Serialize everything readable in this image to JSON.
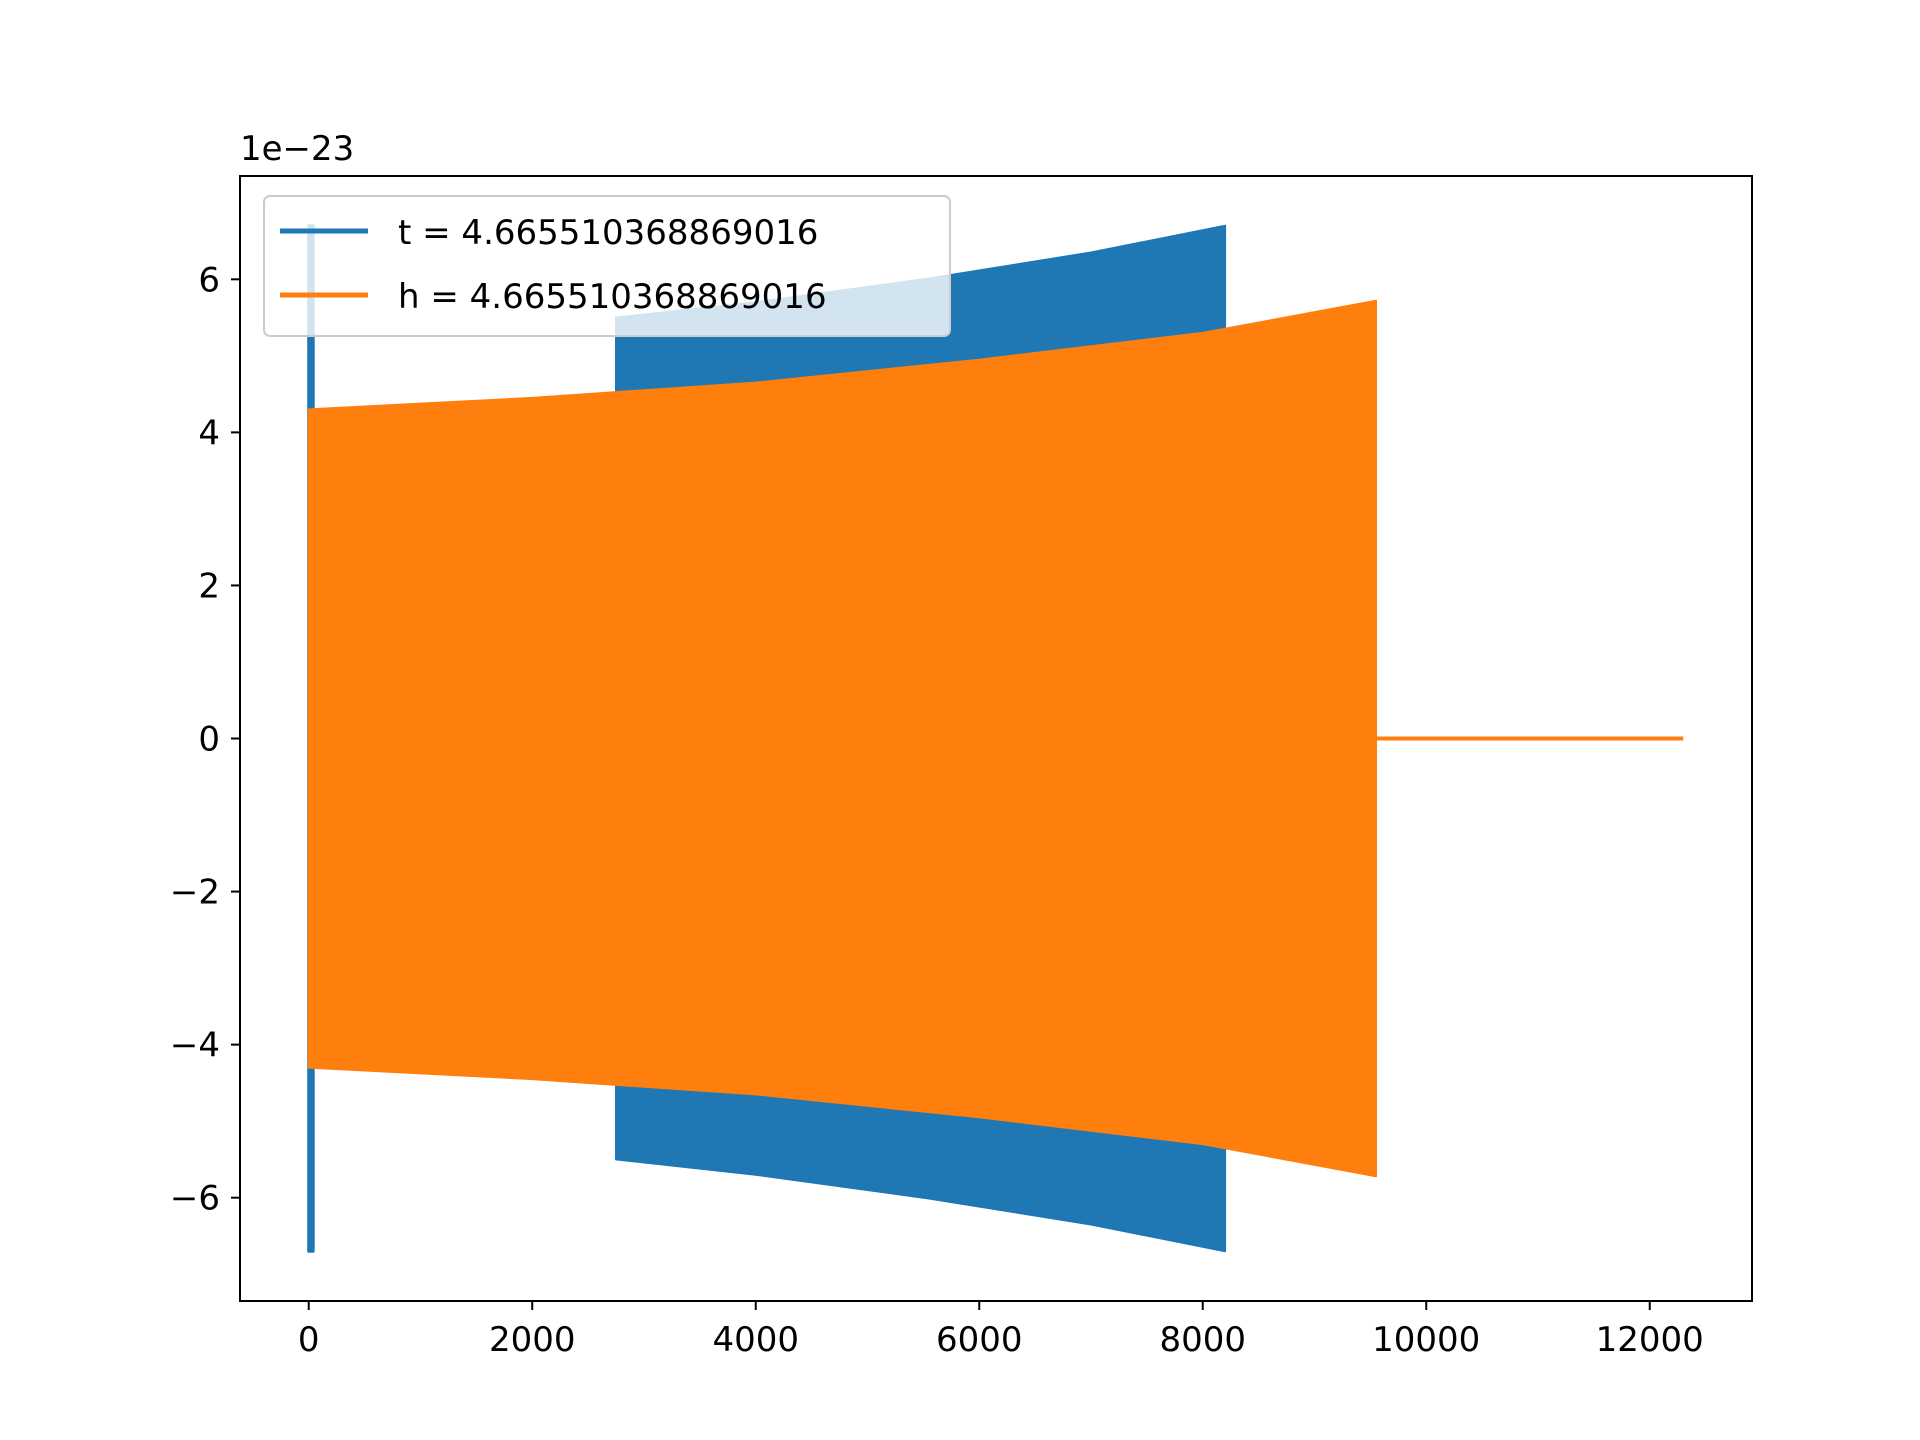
{
  "chart_data": {
    "type": "line",
    "title": "",
    "xlabel": "",
    "ylabel": "",
    "offset_label": "1e−23",
    "xlim": [
      -615,
      12915
    ],
    "ylim": [
      -7.35,
      7.35
    ],
    "x_ticks": [
      0,
      2000,
      4000,
      6000,
      8000,
      10000,
      12000
    ],
    "x_tick_labels": [
      "0",
      "2000",
      "4000",
      "6000",
      "8000",
      "10000",
      "12000"
    ],
    "y_ticks": [
      -6,
      -4,
      -2,
      0,
      2,
      4,
      6
    ],
    "y_tick_labels": [
      "−6",
      "−4",
      "−2",
      "0",
      "2",
      "4",
      "6"
    ],
    "grid": false,
    "legend_position": "upper-left",
    "series": [
      {
        "name": "t = 4.665510368869016",
        "color": "#1f77b4",
        "segments": [
          {
            "kind": "spike",
            "x_range": [
              0,
              40
            ],
            "upper": [
              [
                0,
                6.7
              ],
              [
                40,
                6.7
              ]
            ],
            "lower": [
              [
                0,
                -6.7
              ],
              [
                40,
                -6.7
              ]
            ]
          },
          {
            "kind": "oscillation",
            "x_range": [
              2750,
              8200
            ],
            "upper": [
              [
                2750,
                5.5
              ],
              [
                4000,
                5.7
              ],
              [
                5500,
                6.0
              ],
              [
                7000,
                6.35
              ],
              [
                8200,
                6.7
              ]
            ],
            "lower": [
              [
                2750,
                -5.5
              ],
              [
                4000,
                -5.7
              ],
              [
                5500,
                -6.0
              ],
              [
                7000,
                -6.35
              ],
              [
                8200,
                -6.7
              ]
            ]
          }
        ]
      },
      {
        "name": "h = 4.665510368869016",
        "color": "#ff7f0e",
        "segments": [
          {
            "kind": "oscillation",
            "x_range": [
              0,
              9550
            ],
            "upper": [
              [
                0,
                4.3
              ],
              [
                2000,
                4.45
              ],
              [
                4000,
                4.65
              ],
              [
                6000,
                4.95
              ],
              [
                8000,
                5.3
              ],
              [
                9550,
                5.72
              ]
            ],
            "lower": [
              [
                0,
                -4.3
              ],
              [
                2000,
                -4.45
              ],
              [
                4000,
                -4.65
              ],
              [
                6000,
                -4.95
              ],
              [
                8000,
                -5.3
              ],
              [
                9550,
                -5.72
              ]
            ]
          },
          {
            "kind": "flat",
            "x_range": [
              9550,
              12300
            ],
            "points": [
              [
                9550,
                0
              ],
              [
                12300,
                0
              ]
            ]
          }
        ]
      }
    ]
  }
}
